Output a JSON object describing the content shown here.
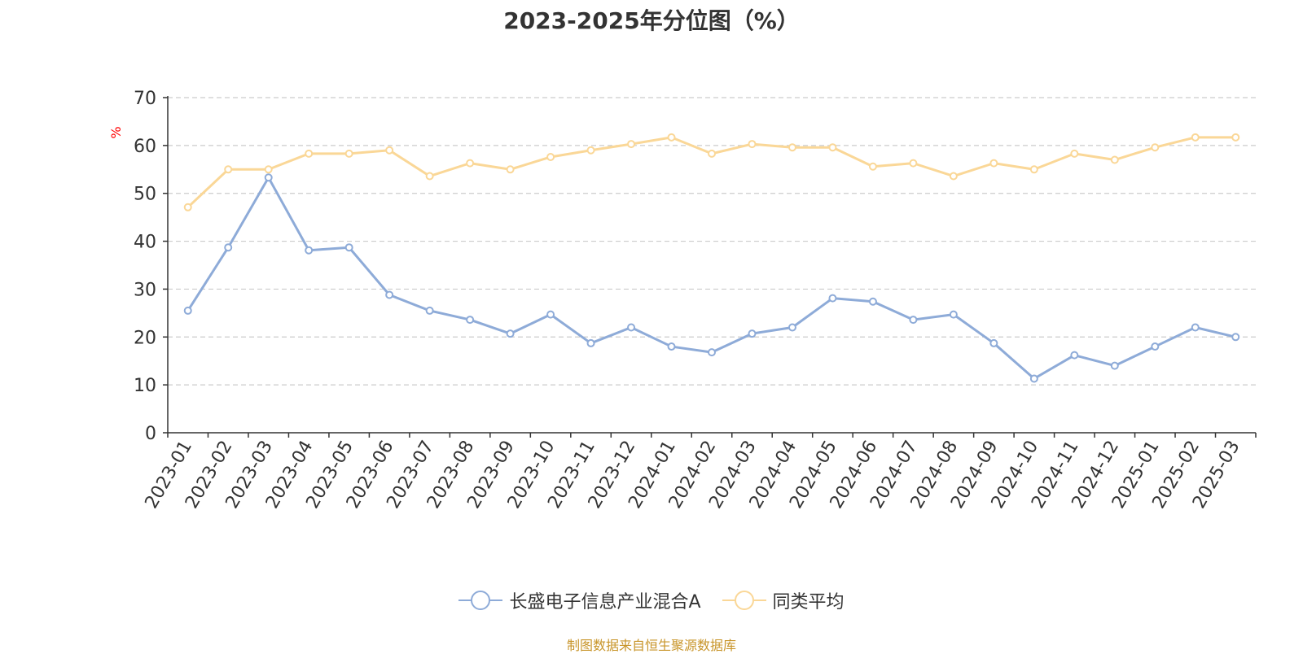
{
  "title": "2023-2025年分位图（%）",
  "source": "制图数据来自恒生聚源数据库",
  "chart_data": {
    "type": "line",
    "ylabel": "%",
    "ylim": [
      0,
      70
    ],
    "yticks": [
      0,
      10,
      20,
      30,
      40,
      50,
      60,
      70
    ],
    "grid": true,
    "legend_position": "bottom",
    "categories": [
      "2023-01",
      "2023-02",
      "2023-03",
      "2023-04",
      "2023-05",
      "2023-06",
      "2023-07",
      "2023-08",
      "2023-09",
      "2023-10",
      "2023-11",
      "2023-12",
      "2024-01",
      "2024-02",
      "2024-03",
      "2024-04",
      "2024-05",
      "2024-06",
      "2024-07",
      "2024-08",
      "2024-09",
      "2024-10",
      "2024-11",
      "2024-12",
      "2025-01",
      "2025-02",
      "2025-03"
    ],
    "series": [
      {
        "name": "长盛电子信息产业混合A",
        "color": "#8eabd8",
        "values": [
          25.5,
          38.7,
          53.3,
          38.1,
          38.7,
          28.8,
          25.5,
          23.6,
          20.7,
          24.7,
          18.7,
          22.0,
          18.0,
          16.8,
          20.7,
          22.0,
          28.1,
          27.4,
          23.6,
          24.7,
          18.7,
          11.3,
          16.2,
          14.0,
          18.0,
          22.0,
          20.0
        ]
      },
      {
        "name": "同类平均",
        "color": "#fad797",
        "values": [
          47.1,
          55.0,
          55.0,
          58.3,
          58.3,
          59.0,
          53.6,
          56.3,
          55.0,
          57.6,
          59.0,
          60.3,
          61.7,
          58.3,
          60.3,
          59.6,
          59.6,
          55.6,
          56.3,
          53.6,
          56.3,
          55.0,
          58.3,
          57.0,
          59.6,
          61.7,
          61.7
        ]
      }
    ]
  }
}
